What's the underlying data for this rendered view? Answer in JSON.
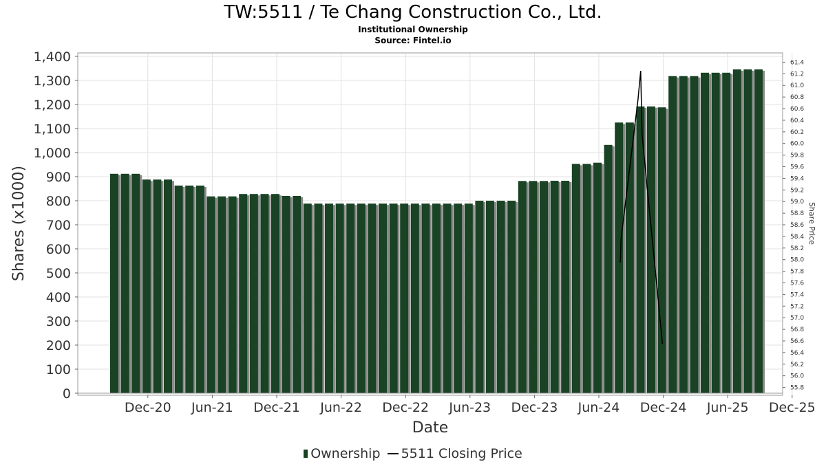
{
  "chart_data": {
    "type": "bar",
    "title": "TW:5511 / Te Chang Construction Co., Ltd.",
    "subtitle": "Institutional Ownership",
    "source": "Source: Fintel.io",
    "xlabel": "Date",
    "ylabel": "Shares (x1000)",
    "y2label": "Share Price",
    "ylim": [
      0,
      1400
    ],
    "y2lim": [
      55.7,
      61.5
    ],
    "grid": true,
    "legend_position": "bottom-center",
    "x_ticks": [
      "Dec-20",
      "Jun-21",
      "Dec-21",
      "Jun-22",
      "Dec-22",
      "Jun-23",
      "Dec-23",
      "Jun-24",
      "Dec-24",
      "Jun-25",
      "Dec-25"
    ],
    "y_ticks": [
      "0",
      "100",
      "200",
      "300",
      "400",
      "500",
      "600",
      "700",
      "800",
      "900",
      "1,000",
      "1,100",
      "1,200",
      "1,300",
      "1,400"
    ],
    "y2_ticks": [
      "55.8",
      "56.0",
      "56.2",
      "56.4",
      "56.6",
      "56.8",
      "57.0",
      "57.2",
      "57.4",
      "57.6",
      "57.8",
      "58.0",
      "58.2",
      "58.4",
      "58.6",
      "58.8",
      "59.0",
      "59.2",
      "59.4",
      "59.6",
      "59.8",
      "60.0",
      "60.2",
      "60.4",
      "60.6",
      "60.8",
      "61.0",
      "61.2",
      "61.4"
    ],
    "series": [
      {
        "name": "Ownership",
        "type": "bar",
        "color": "#1a4224",
        "values": [
          912,
          912,
          912,
          888,
          888,
          888,
          863,
          863,
          863,
          818,
          818,
          818,
          828,
          828,
          828,
          828,
          820,
          820,
          788,
          788,
          788,
          788,
          788,
          788,
          788,
          788,
          788,
          788,
          788,
          788,
          788,
          788,
          788,
          788,
          800,
          800,
          800,
          800,
          882,
          882,
          882,
          883,
          883,
          953,
          953,
          958,
          1032,
          1125,
          1125,
          1192,
          1192,
          1188,
          1318,
          1318,
          1318,
          1332,
          1332,
          1332,
          1346,
          1346,
          1346
        ]
      },
      {
        "name": "5511 Closing Price",
        "type": "line",
        "color": "#000000",
        "points": [
          {
            "x": "2024-08",
            "y": 57.95
          },
          {
            "x": "2024-08",
            "y": 58.35
          },
          {
            "x": "2024-09",
            "y": 60.75
          },
          {
            "x": "2024-09",
            "y": 61.25
          },
          {
            "x": "2024-09",
            "y": 60.15
          },
          {
            "x": "2024-10",
            "y": 56.55
          }
        ]
      }
    ]
  }
}
